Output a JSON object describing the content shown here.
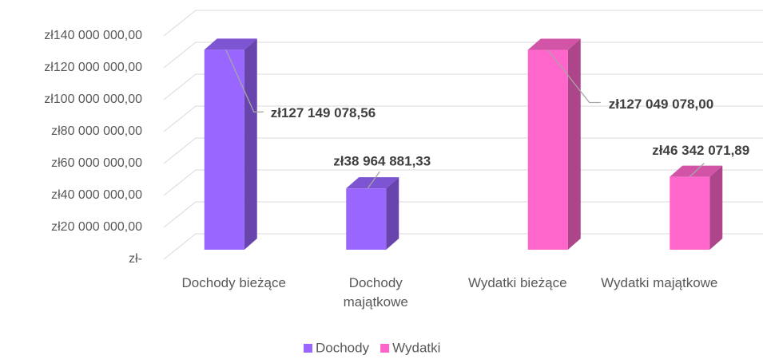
{
  "chart_data": {
    "type": "bar3d",
    "categories": [
      "Dochody bieżące",
      "Dochody majątkowe",
      "Wydatki bieżące",
      "Wydatki majątkowe"
    ],
    "series": [
      {
        "name": "Dochody",
        "color": "#9966ff",
        "values": [
          127149078.56,
          38964881.33,
          null,
          null
        ],
        "value_labels": [
          "zł127 149 078,56",
          "zł38 964 881,33",
          null,
          null
        ]
      },
      {
        "name": "Wydatki",
        "color": "#ff66cc",
        "values": [
          null,
          null,
          127049078.0,
          46342071.89
        ],
        "value_labels": [
          null,
          null,
          "zł127 049 078,00",
          "zł46 342 071,89"
        ]
      }
    ],
    "ylim": [
      0,
      140000000
    ],
    "yticks": [
      {
        "value": 0,
        "label": "zł-"
      },
      {
        "value": 20000000,
        "label": "zł20 000 000,00"
      },
      {
        "value": 40000000,
        "label": "zł40 000 000,00"
      },
      {
        "value": 60000000,
        "label": "zł60 000 000,00"
      },
      {
        "value": 80000000,
        "label": "zł80 000 000,00"
      },
      {
        "value": 100000000,
        "label": "zł100 000 000,00"
      },
      {
        "value": 120000000,
        "label": "zł120 000 000,00"
      },
      {
        "value": 140000000,
        "label": "zł140 000 000,00"
      }
    ],
    "grid": true,
    "legend": "bottom"
  }
}
